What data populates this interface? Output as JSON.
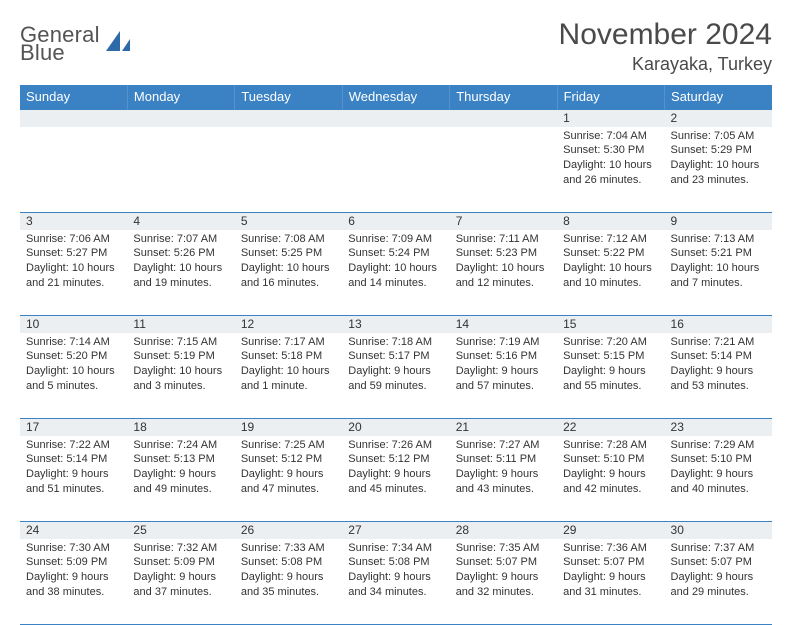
{
  "brand": {
    "line1": "General",
    "line2": "Blue",
    "logo_color": "#2f6aa8"
  },
  "header": {
    "month": "November 2024",
    "location": "Karayaka, Turkey"
  },
  "colors": {
    "header_bg": "#3a82c4",
    "daynum_bg": "#eceff1",
    "rule": "#3a82c4",
    "text": "#333333"
  },
  "weekdays": [
    "Sunday",
    "Monday",
    "Tuesday",
    "Wednesday",
    "Thursday",
    "Friday",
    "Saturday"
  ],
  "weeks": [
    [
      {},
      {},
      {},
      {},
      {},
      {
        "n": "1",
        "sunrise": "Sunrise: 7:04 AM",
        "sunset": "Sunset: 5:30 PM",
        "day1": "Daylight: 10 hours",
        "day2": "and 26 minutes."
      },
      {
        "n": "2",
        "sunrise": "Sunrise: 7:05 AM",
        "sunset": "Sunset: 5:29 PM",
        "day1": "Daylight: 10 hours",
        "day2": "and 23 minutes."
      }
    ],
    [
      {
        "n": "3",
        "sunrise": "Sunrise: 7:06 AM",
        "sunset": "Sunset: 5:27 PM",
        "day1": "Daylight: 10 hours",
        "day2": "and 21 minutes."
      },
      {
        "n": "4",
        "sunrise": "Sunrise: 7:07 AM",
        "sunset": "Sunset: 5:26 PM",
        "day1": "Daylight: 10 hours",
        "day2": "and 19 minutes."
      },
      {
        "n": "5",
        "sunrise": "Sunrise: 7:08 AM",
        "sunset": "Sunset: 5:25 PM",
        "day1": "Daylight: 10 hours",
        "day2": "and 16 minutes."
      },
      {
        "n": "6",
        "sunrise": "Sunrise: 7:09 AM",
        "sunset": "Sunset: 5:24 PM",
        "day1": "Daylight: 10 hours",
        "day2": "and 14 minutes."
      },
      {
        "n": "7",
        "sunrise": "Sunrise: 7:11 AM",
        "sunset": "Sunset: 5:23 PM",
        "day1": "Daylight: 10 hours",
        "day2": "and 12 minutes."
      },
      {
        "n": "8",
        "sunrise": "Sunrise: 7:12 AM",
        "sunset": "Sunset: 5:22 PM",
        "day1": "Daylight: 10 hours",
        "day2": "and 10 minutes."
      },
      {
        "n": "9",
        "sunrise": "Sunrise: 7:13 AM",
        "sunset": "Sunset: 5:21 PM",
        "day1": "Daylight: 10 hours",
        "day2": "and 7 minutes."
      }
    ],
    [
      {
        "n": "10",
        "sunrise": "Sunrise: 7:14 AM",
        "sunset": "Sunset: 5:20 PM",
        "day1": "Daylight: 10 hours",
        "day2": "and 5 minutes."
      },
      {
        "n": "11",
        "sunrise": "Sunrise: 7:15 AM",
        "sunset": "Sunset: 5:19 PM",
        "day1": "Daylight: 10 hours",
        "day2": "and 3 minutes."
      },
      {
        "n": "12",
        "sunrise": "Sunrise: 7:17 AM",
        "sunset": "Sunset: 5:18 PM",
        "day1": "Daylight: 10 hours",
        "day2": "and 1 minute."
      },
      {
        "n": "13",
        "sunrise": "Sunrise: 7:18 AM",
        "sunset": "Sunset: 5:17 PM",
        "day1": "Daylight: 9 hours",
        "day2": "and 59 minutes."
      },
      {
        "n": "14",
        "sunrise": "Sunrise: 7:19 AM",
        "sunset": "Sunset: 5:16 PM",
        "day1": "Daylight: 9 hours",
        "day2": "and 57 minutes."
      },
      {
        "n": "15",
        "sunrise": "Sunrise: 7:20 AM",
        "sunset": "Sunset: 5:15 PM",
        "day1": "Daylight: 9 hours",
        "day2": "and 55 minutes."
      },
      {
        "n": "16",
        "sunrise": "Sunrise: 7:21 AM",
        "sunset": "Sunset: 5:14 PM",
        "day1": "Daylight: 9 hours",
        "day2": "and 53 minutes."
      }
    ],
    [
      {
        "n": "17",
        "sunrise": "Sunrise: 7:22 AM",
        "sunset": "Sunset: 5:14 PM",
        "day1": "Daylight: 9 hours",
        "day2": "and 51 minutes."
      },
      {
        "n": "18",
        "sunrise": "Sunrise: 7:24 AM",
        "sunset": "Sunset: 5:13 PM",
        "day1": "Daylight: 9 hours",
        "day2": "and 49 minutes."
      },
      {
        "n": "19",
        "sunrise": "Sunrise: 7:25 AM",
        "sunset": "Sunset: 5:12 PM",
        "day1": "Daylight: 9 hours",
        "day2": "and 47 minutes."
      },
      {
        "n": "20",
        "sunrise": "Sunrise: 7:26 AM",
        "sunset": "Sunset: 5:12 PM",
        "day1": "Daylight: 9 hours",
        "day2": "and 45 minutes."
      },
      {
        "n": "21",
        "sunrise": "Sunrise: 7:27 AM",
        "sunset": "Sunset: 5:11 PM",
        "day1": "Daylight: 9 hours",
        "day2": "and 43 minutes."
      },
      {
        "n": "22",
        "sunrise": "Sunrise: 7:28 AM",
        "sunset": "Sunset: 5:10 PM",
        "day1": "Daylight: 9 hours",
        "day2": "and 42 minutes."
      },
      {
        "n": "23",
        "sunrise": "Sunrise: 7:29 AM",
        "sunset": "Sunset: 5:10 PM",
        "day1": "Daylight: 9 hours",
        "day2": "and 40 minutes."
      }
    ],
    [
      {
        "n": "24",
        "sunrise": "Sunrise: 7:30 AM",
        "sunset": "Sunset: 5:09 PM",
        "day1": "Daylight: 9 hours",
        "day2": "and 38 minutes."
      },
      {
        "n": "25",
        "sunrise": "Sunrise: 7:32 AM",
        "sunset": "Sunset: 5:09 PM",
        "day1": "Daylight: 9 hours",
        "day2": "and 37 minutes."
      },
      {
        "n": "26",
        "sunrise": "Sunrise: 7:33 AM",
        "sunset": "Sunset: 5:08 PM",
        "day1": "Daylight: 9 hours",
        "day2": "and 35 minutes."
      },
      {
        "n": "27",
        "sunrise": "Sunrise: 7:34 AM",
        "sunset": "Sunset: 5:08 PM",
        "day1": "Daylight: 9 hours",
        "day2": "and 34 minutes."
      },
      {
        "n": "28",
        "sunrise": "Sunrise: 7:35 AM",
        "sunset": "Sunset: 5:07 PM",
        "day1": "Daylight: 9 hours",
        "day2": "and 32 minutes."
      },
      {
        "n": "29",
        "sunrise": "Sunrise: 7:36 AM",
        "sunset": "Sunset: 5:07 PM",
        "day1": "Daylight: 9 hours",
        "day2": "and 31 minutes."
      },
      {
        "n": "30",
        "sunrise": "Sunrise: 7:37 AM",
        "sunset": "Sunset: 5:07 PM",
        "day1": "Daylight: 9 hours",
        "day2": "and 29 minutes."
      }
    ]
  ]
}
